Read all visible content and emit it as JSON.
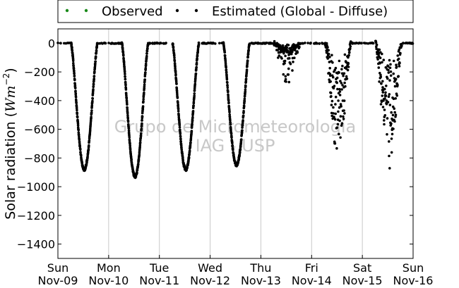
{
  "chart_data": {
    "type": "scatter",
    "ylabel_text": "Solar radiation (",
    "ylabel_unit": "Wm",
    "ylabel_exp": "−2",
    "ylabel_close": ")",
    "ylim": [
      -1500,
      100
    ],
    "yticks": [
      0,
      -200,
      -400,
      -600,
      -800,
      -1000,
      -1200,
      -1400
    ],
    "xlim": [
      0,
      7
    ],
    "xticks": [
      {
        "day": "Sun",
        "date": "Nov-09"
      },
      {
        "day": "Mon",
        "date": "Nov-10"
      },
      {
        "day": "Tue",
        "date": "Nov-11"
      },
      {
        "day": "Wed",
        "date": "Nov-12"
      },
      {
        "day": "Thu",
        "date": "Nov-13"
      },
      {
        "day": "Fri",
        "date": "Nov-14"
      },
      {
        "day": "Sat",
        "date": "Nov-15"
      },
      {
        "day": "Sun",
        "date": "Nov-16"
      }
    ],
    "grid": "vertical",
    "legend_position": "top",
    "series": [
      {
        "name": "Observed",
        "color": "#1a8a1a",
        "marker": "dot"
      },
      {
        "name": "Estimated (Global - Diffuse)",
        "color": "#000000",
        "marker": "dot"
      }
    ],
    "daily_minima": [
      {
        "day_index": 0,
        "min": -880
      },
      {
        "day_index": 1,
        "min": -930
      },
      {
        "day_index": 2,
        "min": -880
      },
      {
        "day_index": 3,
        "min": -850
      },
      {
        "day_index": 4,
        "min": -320
      },
      {
        "day_index": 5,
        "min": -760
      },
      {
        "day_index": 6,
        "min": -830
      }
    ],
    "watermark_line1": "Grupo de Micrometeorologia",
    "watermark_line2": "IAG - USP"
  }
}
